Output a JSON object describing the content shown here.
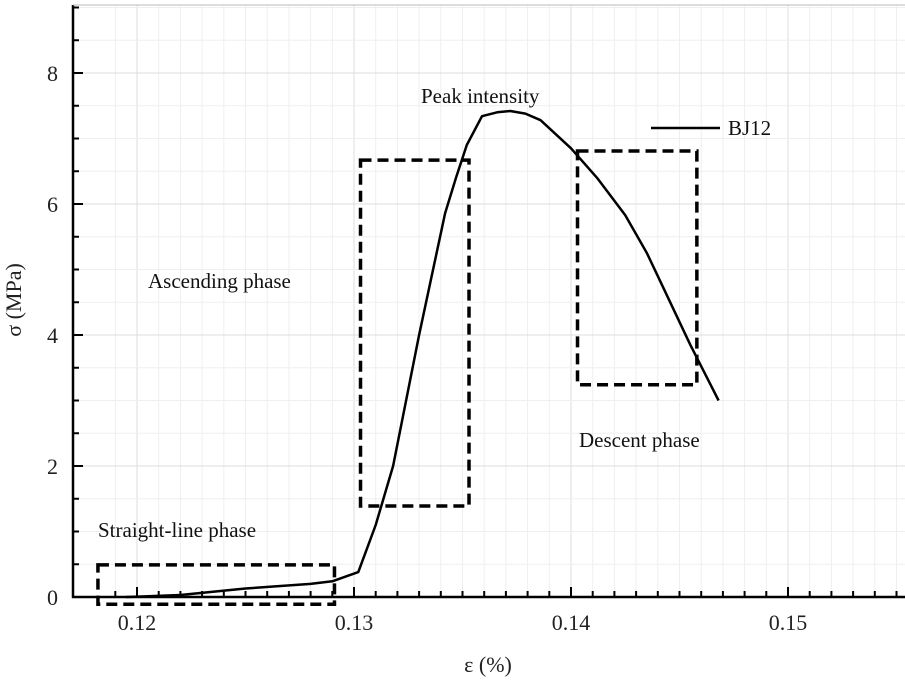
{
  "chart_data": {
    "type": "line",
    "title": "",
    "xlabel": "ε (%)",
    "ylabel": "σ (MPa)",
    "xlim": [
      0.1183,
      0.1554
    ],
    "ylim": [
      0,
      9.0
    ],
    "xticks": [
      0.12,
      0.13,
      0.14,
      0.15
    ],
    "xtick_labels": [
      "0.12",
      "0.13",
      "0.14",
      "0.15"
    ],
    "yticks": [
      0,
      2,
      4,
      6,
      8
    ],
    "ytick_labels": [
      "0",
      "2",
      "4",
      "6",
      "8"
    ],
    "grid": true,
    "legend_placement": "top-right",
    "series": [
      {
        "name": "BJ12",
        "color": "#000000",
        "x": [
          0.1195,
          0.1205,
          0.122,
          0.125,
          0.128,
          0.129,
          0.1302,
          0.131,
          0.1318,
          0.133,
          0.1342,
          0.1347,
          0.1352,
          0.1359,
          0.1366,
          0.1372,
          0.1379,
          0.1386,
          0.14,
          0.1412,
          0.1425,
          0.1435,
          0.1443,
          0.1455,
          0.1468
        ],
        "y": [
          0.0,
          0.01,
          0.03,
          0.13,
          0.2,
          0.24,
          0.38,
          1.1,
          2.0,
          4.0,
          5.86,
          6.4,
          6.9,
          7.34,
          7.4,
          7.42,
          7.38,
          7.28,
          6.85,
          6.4,
          5.83,
          5.25,
          4.69,
          3.85,
          3.0
        ]
      }
    ],
    "regions": [
      {
        "label": "Straight-line phase",
        "x": [
          0.1182,
          0.1291
        ],
        "y": [
          -0.11,
          0.49
        ]
      },
      {
        "label": "Ascending phase",
        "x": [
          0.1303,
          0.1353
        ],
        "y": [
          1.39,
          6.67
        ]
      },
      {
        "label": "Descent phase",
        "x": [
          0.1403,
          0.1458
        ],
        "y": [
          3.24,
          6.81
        ]
      }
    ],
    "annotations": [
      {
        "text": "Peak intensity"
      }
    ]
  }
}
